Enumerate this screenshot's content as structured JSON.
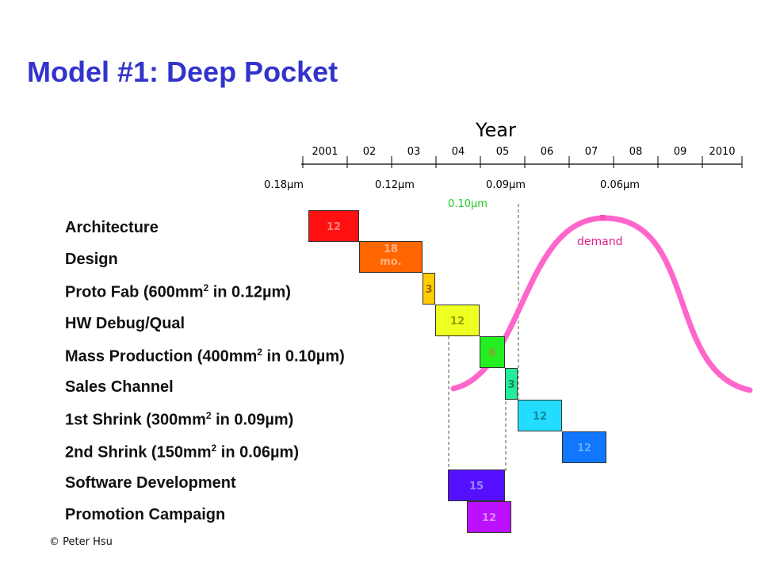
{
  "title": "Model #1: Deep Pocket",
  "timeline": {
    "heading": "Year",
    "ticks": [
      "2001",
      "02",
      "03",
      "04",
      "05",
      "06",
      "07",
      "08",
      "09",
      "2010"
    ]
  },
  "process_nodes": [
    {
      "label": "0.18µm",
      "color": "#000000"
    },
    {
      "label": "0.12µm",
      "color": "#000000"
    },
    {
      "label": "0.09µm",
      "color": "#000000"
    },
    {
      "label": "0.06µm",
      "color": "#000000"
    },
    {
      "label": "0.10µm",
      "color": "#22cc22"
    }
  ],
  "rows": [
    {
      "label": "Architecture",
      "sup": "",
      "label_after": ""
    },
    {
      "label": "Design",
      "sup": "",
      "label_after": ""
    },
    {
      "label": "Proto Fab (600mm",
      "sup": "2",
      "label_after": " in 0.12µm)"
    },
    {
      "label": "HW Debug/Qual",
      "sup": "",
      "label_after": ""
    },
    {
      "label": "Mass Production (400mm",
      "sup": "2",
      "label_after": " in 0.10µm)"
    },
    {
      "label": "Sales Channel",
      "sup": "",
      "label_after": ""
    },
    {
      "label": "1st Shrink (300mm",
      "sup": "2",
      "label_after": " in 0.09µm)"
    },
    {
      "label": "2nd Shrink (150mm",
      "sup": "2",
      "label_after": " in 0.06µm)"
    },
    {
      "label": "Software Development",
      "sup": "",
      "label_after": ""
    },
    {
      "label": "Promotion Campaign",
      "sup": "",
      "label_after": ""
    }
  ],
  "bars": [
    {
      "text": "12",
      "text2": "",
      "color": "#ff1111",
      "text_color": "#ff8080"
    },
    {
      "text": "18",
      "text2": "mo.",
      "color": "#ff6600",
      "text_color": "#ffb380"
    },
    {
      "text": "3",
      "text2": "",
      "color": "#ffcc00",
      "text_color": "#996600"
    },
    {
      "text": "12",
      "text2": "",
      "color": "#eeff22",
      "text_color": "#999900"
    },
    {
      "text": "6",
      "text2": "",
      "color": "#22ee22",
      "text_color": "#999933"
    },
    {
      "text": "3",
      "text2": "",
      "color": "#22ee99",
      "text_color": "#118855"
    },
    {
      "text": "12",
      "text2": "",
      "color": "#22ddff",
      "text_color": "#118899"
    },
    {
      "text": "12",
      "text2": "",
      "color": "#1177ff",
      "text_color": "#66aaff"
    },
    {
      "text": "15",
      "text2": "",
      "color": "#5511ff",
      "text_color": "#9988ff"
    },
    {
      "text": "12",
      "text2": "",
      "color": "#bb11ff",
      "text_color": "#dd88ff"
    }
  ],
  "demand": {
    "label": "demand",
    "color": "#ff66cc"
  },
  "copyright": "© Peter Hsu"
}
